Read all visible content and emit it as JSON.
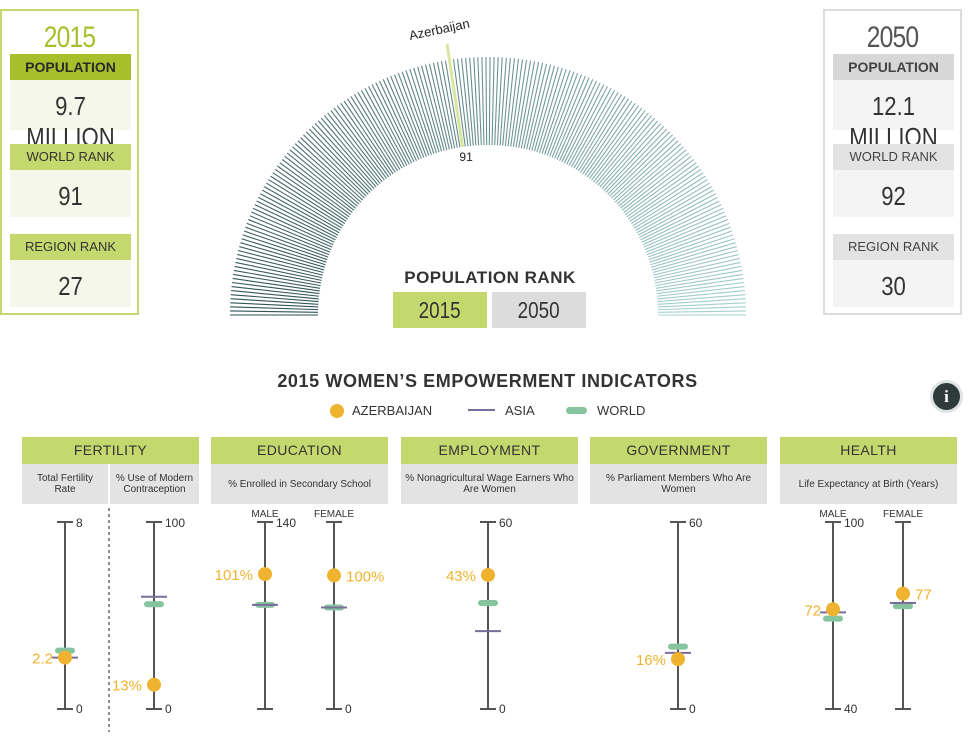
{
  "panel_2015": {
    "year": "2015",
    "population_label": "POPULATION",
    "population_value": "9.7 MILLION",
    "world_rank_label": "WORLD RANK",
    "world_rank_value": "91",
    "region_rank_label": "REGION RANK",
    "region_rank_value": "27"
  },
  "panel_2050": {
    "year": "2050",
    "population_label": "POPULATION",
    "population_value": "12.1 MILLION",
    "world_rank_label": "WORLD RANK",
    "world_rank_value": "92",
    "region_rank_label": "REGION RANK",
    "region_rank_value": "30"
  },
  "gauge": {
    "country_label": "Azerbaijan",
    "rank_label": "91",
    "rank": 91,
    "total_countries": 200,
    "colors": {
      "start": "#2f5257",
      "end": "#a6d0d0",
      "highlight": "#d9e6a0"
    }
  },
  "rank_selector": {
    "title": "POPULATION RANK",
    "btn_2015": "2015",
    "btn_2050": "2050",
    "active": "2015"
  },
  "indicators": {
    "title": "2015 WOMEN’S EMPOWERMENT INDICATORS",
    "legend": {
      "country": "AZERBAIJAN",
      "asia": "ASIA",
      "world": "WORLD"
    },
    "colors": {
      "country": "#f0b32f",
      "asia": "#7a6d9c",
      "world": "#86c4a0",
      "axis": "#555555",
      "header": "#c5d86d"
    },
    "info_icon": "info-icon",
    "categories": [
      {
        "name": "FERTILITY",
        "subs": [
          "Total Fertility Rate",
          "% Use of Modern Contraception"
        ]
      },
      {
        "name": "EDUCATION",
        "subs": [
          "% Enrolled in Secondary School"
        ]
      },
      {
        "name": "EMPLOYMENT",
        "subs": [
          "% Nonagricultural Wage Earners Who Are Women"
        ]
      },
      {
        "name": "GOVERNMENT",
        "subs": [
          "% Parliament Members Who Are Women"
        ]
      },
      {
        "name": "HEALTH",
        "subs": [
          "Life Expectancy at Birth (Years)"
        ]
      }
    ]
  },
  "chart_data": [
    {
      "type": "scatter",
      "title": "Total Fertility Rate",
      "ylim": [
        0,
        8
      ],
      "top_label": "8",
      "bottom_label": "0",
      "country": 2.2,
      "country_label": "2.2",
      "asia": 2.2,
      "world": 2.5
    },
    {
      "type": "scatter",
      "title": "% Use of Modern Contraception",
      "ylim": [
        0,
        100
      ],
      "top_label": "100",
      "bottom_label": "0",
      "country": 13,
      "country_label": "13%",
      "asia": 60,
      "world": 56
    },
    {
      "type": "scatter",
      "title": "% Enrolled in Secondary School",
      "xlabel": "MALE",
      "ylim": [
        0,
        140
      ],
      "top_label": "140",
      "bottom_label": "",
      "country": 101,
      "country_label": "101%",
      "asia": 78,
      "world": 78
    },
    {
      "type": "scatter",
      "title": "% Enrolled in Secondary School",
      "xlabel": "FEMALE",
      "ylim": [
        0,
        140
      ],
      "top_label": "",
      "bottom_label": "0",
      "country": 100,
      "country_label": "100%",
      "asia": 76,
      "world": 76
    },
    {
      "type": "scatter",
      "title": "% Nonagricultural Wage Earners Who Are Women",
      "ylim": [
        0,
        60
      ],
      "top_label": "60",
      "bottom_label": "0",
      "country": 43,
      "country_label": "43%",
      "asia": 25,
      "world": 34
    },
    {
      "type": "scatter",
      "title": "% Parliament Members Who Are Women",
      "ylim": [
        0,
        60
      ],
      "top_label": "60",
      "bottom_label": "0",
      "country": 16,
      "country_label": "16%",
      "asia": 18,
      "world": 20
    },
    {
      "type": "scatter",
      "title": "Life Expectancy at Birth (Years)",
      "xlabel": "MALE",
      "ylim": [
        40,
        100
      ],
      "top_label": "100",
      "bottom_label": "40",
      "country": 72,
      "country_label": "72",
      "asia": 71,
      "world": 69
    },
    {
      "type": "scatter",
      "title": "Life Expectancy at Birth (Years)",
      "xlabel": "FEMALE",
      "ylim": [
        40,
        100
      ],
      "top_label": "",
      "bottom_label": "",
      "country": 77,
      "country_label": "77",
      "asia": 74,
      "world": 73
    }
  ]
}
